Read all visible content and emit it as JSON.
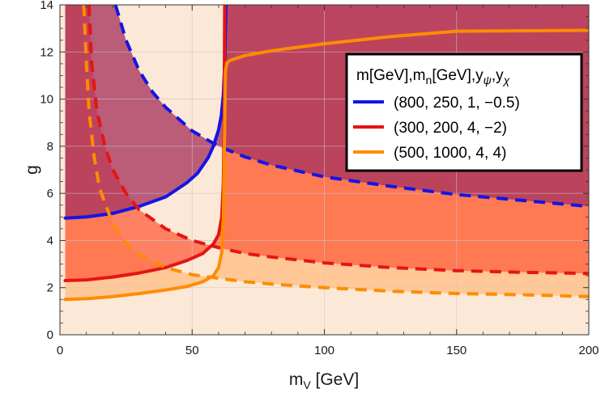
{
  "chart_data": {
    "type": "line",
    "title": "",
    "xlabel": "m",
    "xlabel_sub": "V",
    "xlabel_unit": " [GeV]",
    "ylabel": "g",
    "xlim": [
      0,
      200
    ],
    "ylim": [
      0,
      14
    ],
    "x_ticks": [
      0,
      50,
      100,
      150,
      200
    ],
    "y_ticks": [
      0,
      2,
      4,
      6,
      8,
      10,
      12,
      14
    ],
    "grid": true,
    "legend_position": "top-right",
    "legend_title_parts": [
      "m[GeV],m",
      "n",
      "[GeV],y",
      "ψ",
      ",y",
      "χ"
    ],
    "colors": {
      "blue": "#1414e6",
      "red": "#e61414",
      "orange": "#ff8c00",
      "fill_blue": "#a8345f",
      "fill_red": "#ff5f3c",
      "fill_orange": "#ffc896",
      "plot_bg": "#fce8d6"
    },
    "series": [
      {
        "name": "(800, 250, 1, −0.5)",
        "color": "#1414e6",
        "solid": [
          [
            2,
            4.95
          ],
          [
            10,
            5.0
          ],
          [
            20,
            5.15
          ],
          [
            30,
            5.45
          ],
          [
            40,
            5.85
          ],
          [
            48,
            6.45
          ],
          [
            52,
            6.85
          ],
          [
            56,
            7.5
          ],
          [
            58,
            8.0
          ],
          [
            60,
            8.7
          ],
          [
            61,
            9.3
          ],
          [
            61.8,
            10.2
          ],
          [
            62.3,
            11.5
          ],
          [
            62.6,
            13
          ],
          [
            62.8,
            14
          ]
        ],
        "dashed": [
          [
            21,
            14
          ],
          [
            25,
            12.5
          ],
          [
            30,
            11.2
          ],
          [
            35,
            10.3
          ],
          [
            40,
            9.65
          ],
          [
            50,
            8.65
          ],
          [
            60,
            8.0
          ],
          [
            70,
            7.55
          ],
          [
            80,
            7.2
          ],
          [
            100,
            6.7
          ],
          [
            125,
            6.3
          ],
          [
            150,
            5.95
          ],
          [
            175,
            5.7
          ],
          [
            200,
            5.45
          ]
        ]
      },
      {
        "name": "(300, 200, 4, −2)",
        "color": "#e61414",
        "solid": [
          [
            2,
            2.3
          ],
          [
            10,
            2.33
          ],
          [
            20,
            2.45
          ],
          [
            30,
            2.62
          ],
          [
            40,
            2.85
          ],
          [
            48,
            3.15
          ],
          [
            54,
            3.45
          ],
          [
            58,
            3.85
          ],
          [
            60,
            4.25
          ],
          [
            61.2,
            5.0
          ],
          [
            61.8,
            6.5
          ],
          [
            62.1,
            9
          ],
          [
            62.3,
            14
          ]
        ],
        "dashed": [
          [
            11,
            14
          ],
          [
            12,
            11.5
          ],
          [
            14,
            9.5
          ],
          [
            17,
            8.0
          ],
          [
            20,
            7.0
          ],
          [
            25,
            6.0
          ],
          [
            30,
            5.3
          ],
          [
            40,
            4.5
          ],
          [
            50,
            4.0
          ],
          [
            60,
            3.7
          ],
          [
            70,
            3.45
          ],
          [
            80,
            3.3
          ],
          [
            100,
            3.05
          ],
          [
            125,
            2.85
          ],
          [
            150,
            2.72
          ],
          [
            175,
            2.65
          ],
          [
            200,
            2.6
          ]
        ]
      },
      {
        "name": "(500, 1000, 4, 4)",
        "color": "#ff8c00",
        "solid": [
          [
            2,
            1.5
          ],
          [
            10,
            1.53
          ],
          [
            20,
            1.62
          ],
          [
            30,
            1.75
          ],
          [
            40,
            1.9
          ],
          [
            48,
            2.05
          ],
          [
            54,
            2.25
          ],
          [
            58,
            2.5
          ],
          [
            60,
            2.85
          ],
          [
            61.2,
            3.5
          ],
          [
            61.8,
            5
          ],
          [
            62.2,
            8
          ],
          [
            62.6,
            11.2
          ],
          [
            63.2,
            11.55
          ],
          [
            64.5,
            11.65
          ],
          [
            70,
            11.85
          ],
          [
            80,
            12.05
          ],
          [
            100,
            12.35
          ],
          [
            125,
            12.65
          ],
          [
            150,
            12.88
          ],
          [
            175,
            12.9
          ],
          [
            200,
            12.92
          ]
        ],
        "dashed": [
          [
            9,
            14
          ],
          [
            10,
            11.5
          ],
          [
            11,
            9.5
          ],
          [
            13,
            7.5
          ],
          [
            15,
            6.2
          ],
          [
            20,
            4.7
          ],
          [
            25,
            3.9
          ],
          [
            30,
            3.4
          ],
          [
            40,
            2.85
          ],
          [
            50,
            2.55
          ],
          [
            60,
            2.4
          ],
          [
            70,
            2.25
          ],
          [
            80,
            2.15
          ],
          [
            100,
            2.0
          ],
          [
            125,
            1.85
          ],
          [
            150,
            1.75
          ],
          [
            175,
            1.7
          ],
          [
            200,
            1.62
          ]
        ]
      }
    ]
  }
}
